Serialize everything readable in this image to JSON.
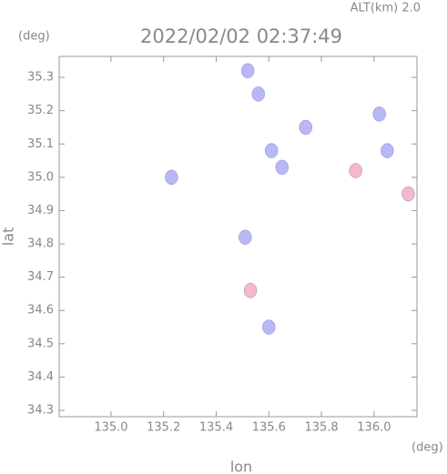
{
  "chart_data": {
    "type": "scatter",
    "title": "2022/02/02 02:37:49",
    "subtitle": "ALT(km) 2.0",
    "x_label": "lon",
    "y_label": "lat",
    "x_unit": "(deg)",
    "y_unit": "(deg)",
    "xlim": [
      134.803,
      136.163
    ],
    "ylim": [
      34.281,
      35.363
    ],
    "xticks": [
      {
        "value": 135.0,
        "label": "135.0"
      },
      135.2,
      135.4,
      135.6,
      135.8,
      {
        "value": 136.0,
        "label": "136.0"
      }
    ],
    "yticks": [
      34.3,
      34.4,
      34.5,
      34.6,
      34.7,
      34.8,
      34.9,
      {
        "value": 35.0,
        "label": "35.0"
      },
      35.1,
      35.2,
      35.3
    ],
    "series": [
      {
        "color": "#b8b8f4",
        "x": [
          135.52,
          135.56,
          135.74,
          135.61,
          135.65,
          135.23,
          136.02,
          136.05,
          135.51,
          135.6
        ],
        "y": [
          35.32,
          35.25,
          35.15,
          35.08,
          35.03,
          35.0,
          35.19,
          35.08,
          34.82,
          34.55
        ]
      },
      {
        "color": "#f4b8c8",
        "x": [
          135.93,
          136.13,
          135.53
        ],
        "y": [
          35.02,
          34.95,
          34.66
        ]
      }
    ]
  }
}
